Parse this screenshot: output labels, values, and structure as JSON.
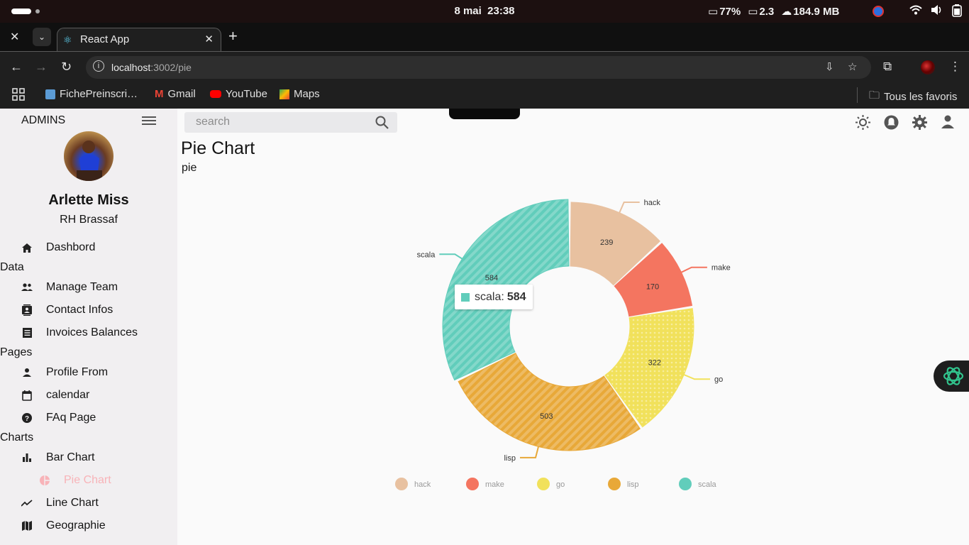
{
  "system": {
    "date": "8 mai",
    "time": "23:38",
    "battery": "77%",
    "cpu": "2.3",
    "memory": "184.9 MB"
  },
  "browser": {
    "tab_title": "React App",
    "url_host": "localhost",
    "url_path": ":3002/pie",
    "bookmarks": [
      "FichePreinscri…",
      "Gmail",
      "YouTube",
      "Maps"
    ],
    "all_bookmarks": "Tous les favoris"
  },
  "sidebar": {
    "header": "ADMINS",
    "user_name": "Arlette Miss",
    "user_role": "RH Brassaf",
    "items": {
      "dashboard": "Dashbord",
      "section_data": "Data",
      "manage_team": "Manage Team",
      "contact_infos": "Contact Infos",
      "invoices": "Invoices Balances",
      "section_pages": "Pages",
      "profile_form": "Profile From",
      "calendar": "calendar",
      "faq": "FAq Page",
      "section_charts": "Charts",
      "bar_chart": "Bar Chart",
      "pie_chart": "Pie Chart",
      "line_chart": "Line Chart",
      "geography": "Geographie"
    }
  },
  "topbar": {
    "search_placeholder": "search"
  },
  "page": {
    "title": "Pie Chart",
    "subtitle": "pie"
  },
  "chart_data": {
    "type": "pie",
    "donut": true,
    "categories": [
      "hack",
      "make",
      "go",
      "lisp",
      "scala"
    ],
    "values": [
      239,
      170,
      322,
      503,
      584
    ],
    "colors": [
      "#e8c1a0",
      "#f47560",
      "#f1e15b",
      "#e8a838",
      "#61cdbb"
    ],
    "legend_placement": "bottom",
    "tooltip": {
      "label": "scala",
      "value": "584"
    }
  }
}
